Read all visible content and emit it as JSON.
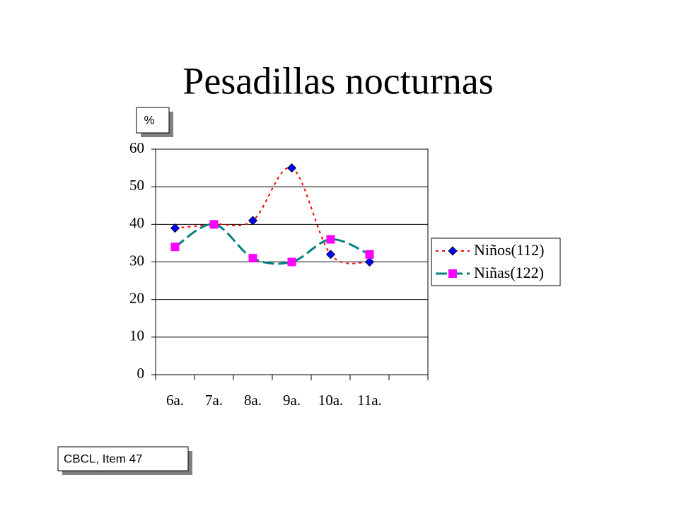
{
  "chart_data": {
    "type": "line",
    "title": "Pesadillas nocturnas",
    "y_label": "%",
    "note": "CBCL, Item 47",
    "categories": [
      "6a.",
      "7a.",
      "8a.",
      "9a.",
      "10a.",
      "11a.",
      null
    ],
    "series": [
      {
        "name": "Niños(112)",
        "color": "#ff0000",
        "marker_color": "#0000ff",
        "marker": "diamond",
        "dash": "dotted",
        "values": [
          39,
          40,
          41,
          55,
          32,
          30,
          null
        ]
      },
      {
        "name": "Niñas(122)",
        "color": "#008080",
        "marker_color": "#ff00ff",
        "marker": "square",
        "dash": "dashed",
        "values": [
          34,
          40,
          31,
          30,
          36,
          32,
          null
        ]
      }
    ],
    "ylim": [
      0,
      60
    ],
    "yticks": [
      0,
      10,
      20,
      30,
      40,
      50,
      60
    ],
    "grid": true,
    "legend": "right"
  }
}
